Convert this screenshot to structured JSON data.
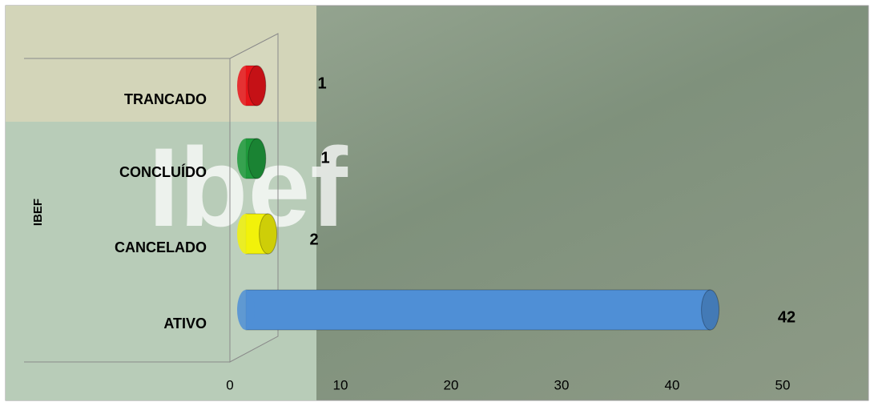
{
  "chart_data": {
    "type": "bar",
    "orientation": "horizontal",
    "style": "3d-cylinder",
    "background_text": "Ibef",
    "y_axis_label": "IBEF",
    "categories": [
      "ATIVO",
      "CANCELADO",
      "CONCLUÍDO",
      "TRANCADO"
    ],
    "values": [
      42,
      2,
      1,
      1
    ],
    "colors": [
      "#4f8fd6",
      "#f2f20a",
      "#1f9a3c",
      "#e8141a"
    ],
    "xlim": [
      0,
      50
    ],
    "xticks": [
      0,
      10,
      20,
      30,
      40,
      50
    ]
  }
}
